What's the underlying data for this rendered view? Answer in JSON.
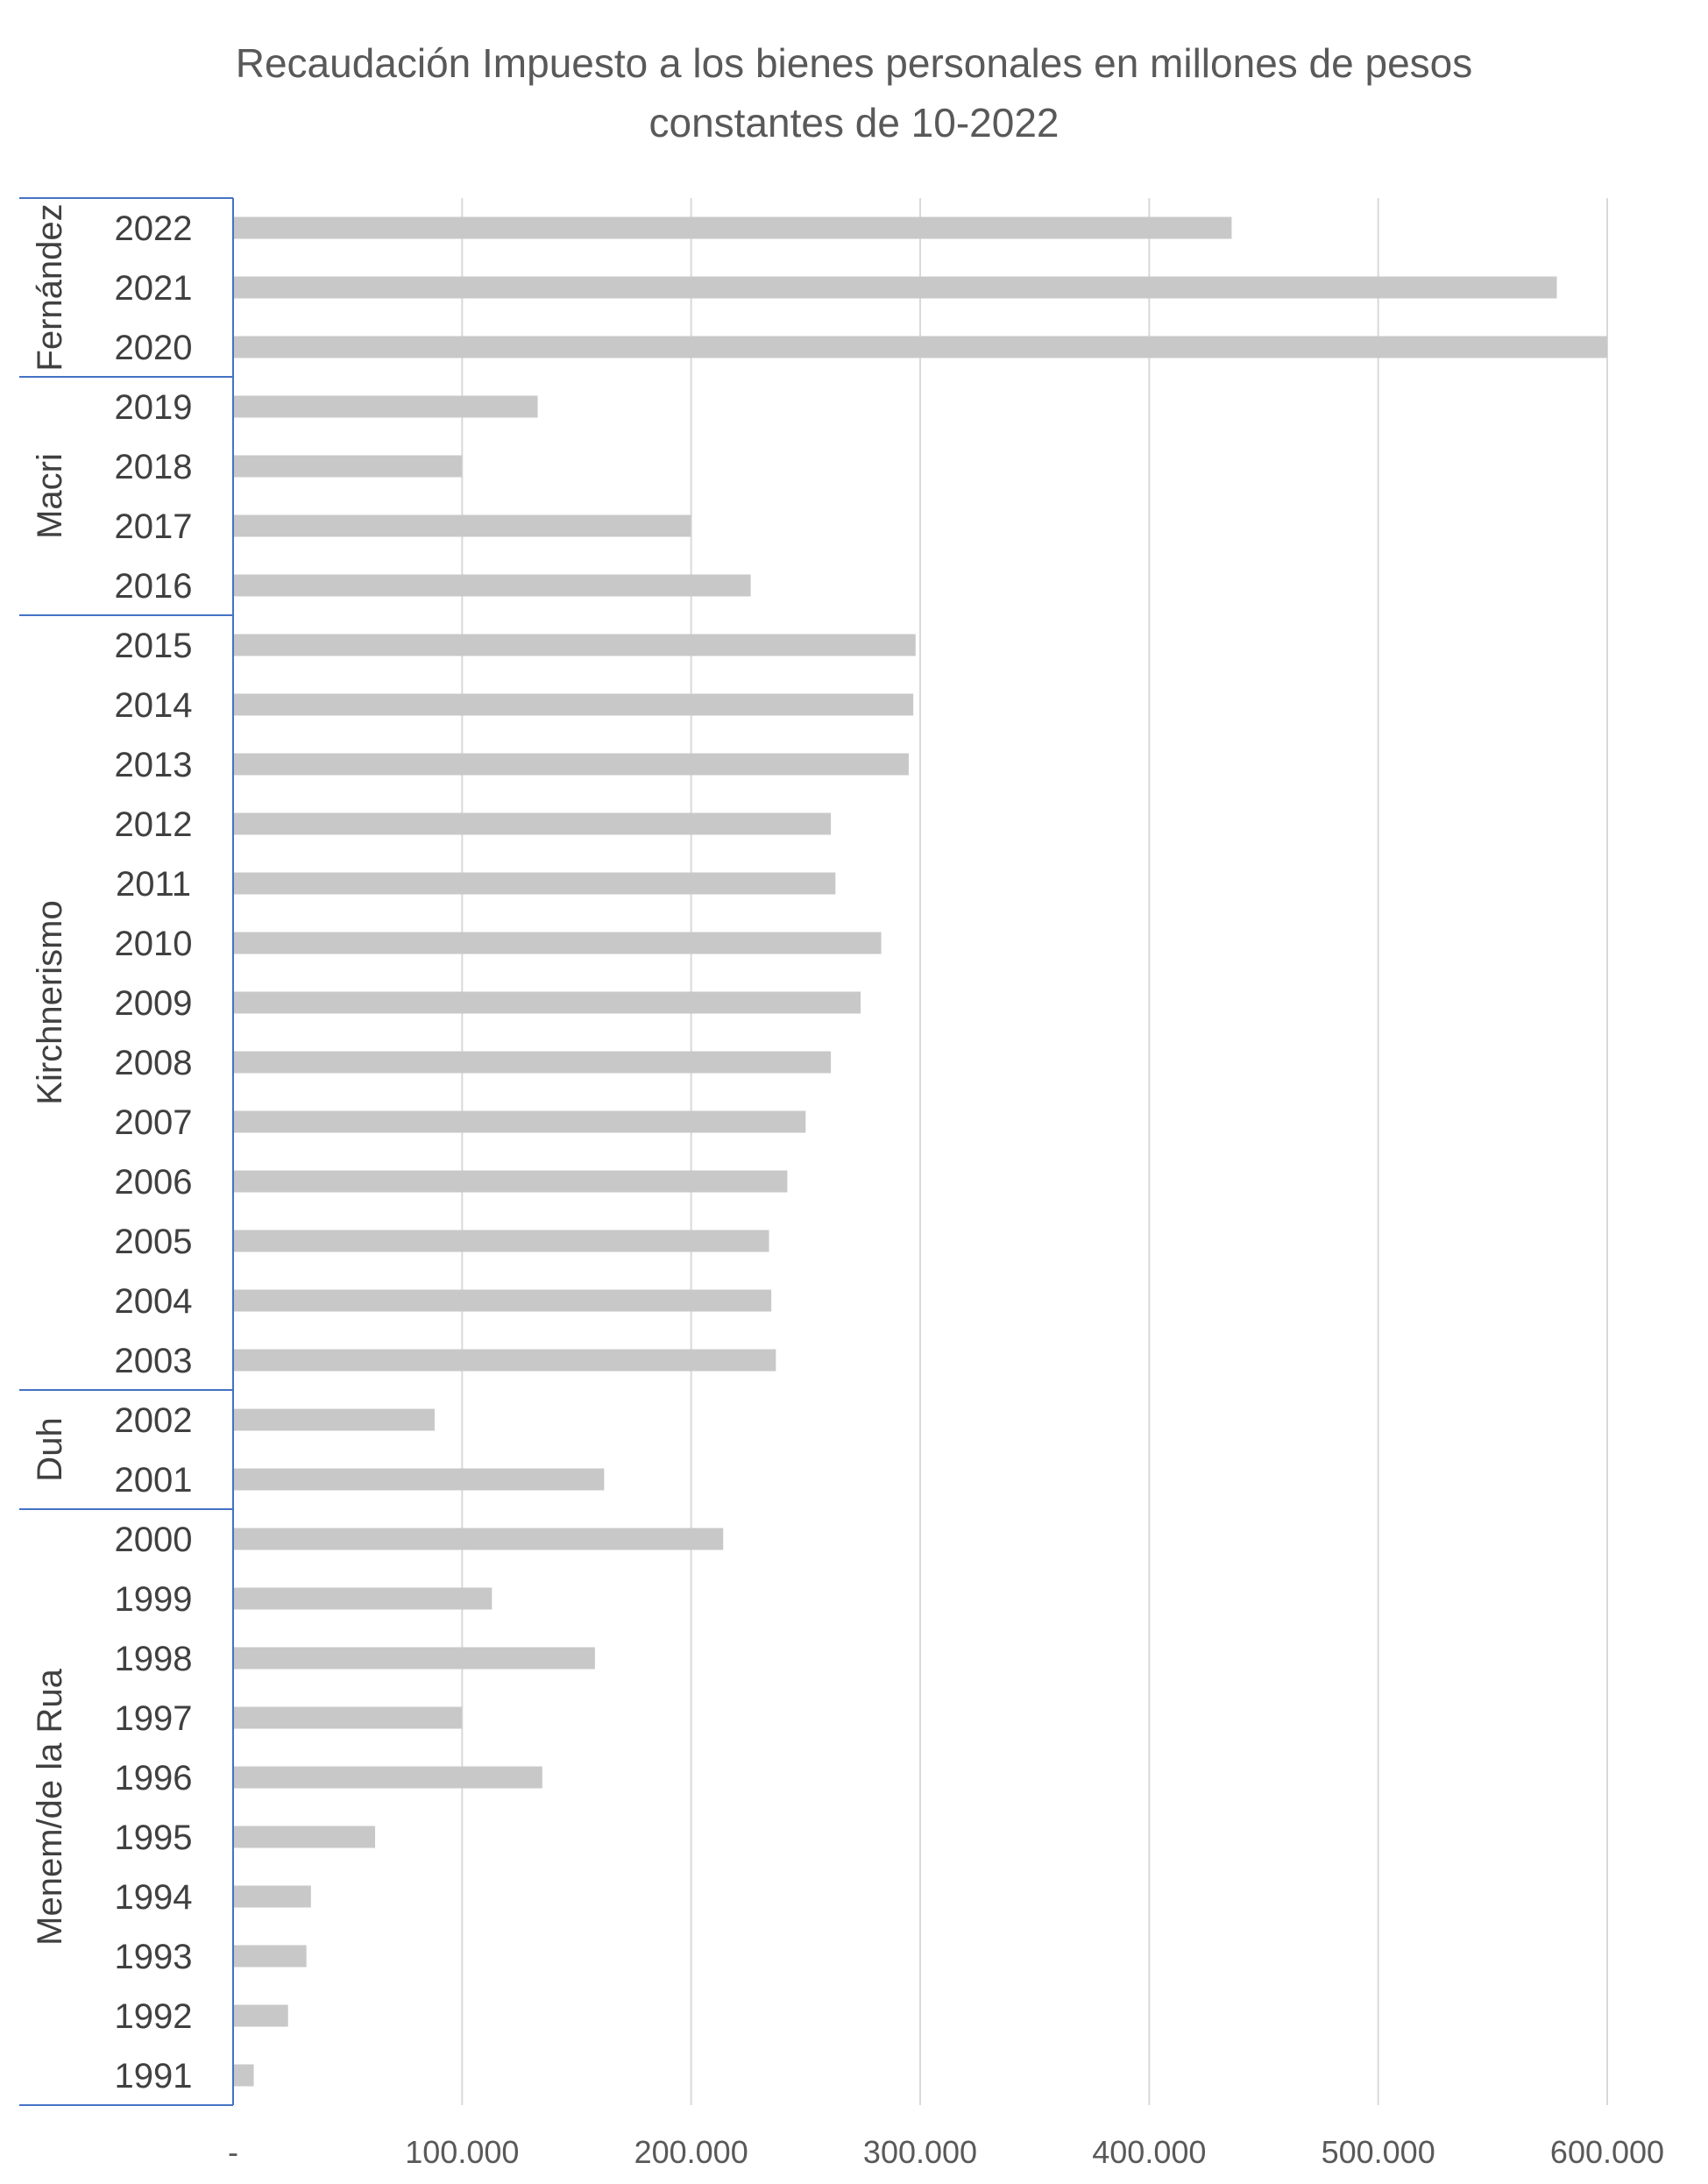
{
  "chart_data": {
    "type": "bar",
    "orientation": "horizontal",
    "title_line1": "Recaudación Impuesto a los bienes personales en millones de pesos",
    "title_line2": "constantes de 10-2022",
    "xlabel": "",
    "ylabel": "",
    "xlim": [
      0,
      600000
    ],
    "x_ticks": [
      0,
      100000,
      200000,
      300000,
      400000,
      500000,
      600000
    ],
    "x_tick_labels": [
      "-",
      "100.000",
      "200.000",
      "300.000",
      "400.000",
      "500.000",
      "600.000"
    ],
    "grid": "vertical",
    "legend": "none",
    "bar_color": "#c8c8c8",
    "grid_color": "#d9d9d9",
    "group_line_color": "#4472c4",
    "categories": [
      "2022",
      "2021",
      "2020",
      "2019",
      "2018",
      "2017",
      "2016",
      "2015",
      "2014",
      "2013",
      "2012",
      "2011",
      "2010",
      "2009",
      "2008",
      "2007",
      "2006",
      "2005",
      "2004",
      "2003",
      "2002",
      "2001",
      "2000",
      "1999",
      "1998",
      "1997",
      "1996",
      "1995",
      "1994",
      "1993",
      "1992",
      "1991"
    ],
    "values": [
      436000,
      578000,
      600000,
      133000,
      100000,
      200000,
      226000,
      298000,
      297000,
      295000,
      261000,
      263000,
      283000,
      274000,
      261000,
      250000,
      242000,
      234000,
      235000,
      237000,
      88000,
      162000,
      214000,
      113000,
      158000,
      100000,
      135000,
      62000,
      34000,
      32000,
      24000,
      9000
    ],
    "groups": [
      {
        "label": "Fernández",
        "start": 0,
        "end": 2
      },
      {
        "label": "Macri",
        "start": 3,
        "end": 6
      },
      {
        "label": "Kirchnerismo",
        "start": 7,
        "end": 19
      },
      {
        "label": "Duh",
        "start": 20,
        "end": 21
      },
      {
        "label": "Menem/de la Rua",
        "start": 22,
        "end": 31
      }
    ]
  }
}
